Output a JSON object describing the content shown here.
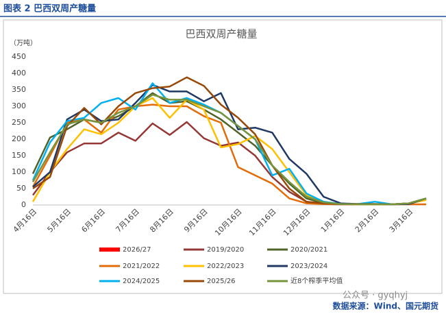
{
  "header": {
    "title": "图表 2  巴西双周产糖量"
  },
  "chart_data": {
    "type": "line",
    "title": "巴西双周产糖量",
    "y_label": "（万吨）",
    "categories": [
      "4月16日",
      null,
      "5月16日",
      null,
      "6月16日",
      null,
      "7月16日",
      null,
      "8月16日",
      null,
      "9月16日",
      null,
      "10月16日",
      null,
      "11月16日",
      null,
      "12月16日",
      null,
      "1月16日",
      null,
      "2月16日",
      null,
      "3月16日",
      null
    ],
    "ylim": [
      0,
      450
    ],
    "yticks": [
      0,
      50,
      100,
      150,
      200,
      250,
      300,
      350,
      400,
      450
    ],
    "grid": false,
    "series": [
      {
        "name": "2026/27",
        "color": "#ff0000",
        "values": [
          null,
          null,
          null,
          null,
          null,
          null,
          null,
          null,
          null,
          null,
          null,
          null,
          null,
          null,
          null,
          null,
          null,
          null,
          null,
          null,
          null,
          null,
          null,
          null
        ]
      },
      {
        "name": "2019/2020",
        "color": "#953735",
        "values": [
          30,
          100,
          160,
          187,
          187,
          220,
          195,
          248,
          213,
          252,
          203,
          180,
          190,
          150,
          85,
          40,
          10,
          3,
          2,
          2,
          2,
          2,
          5,
          18
        ]
      },
      {
        "name": "2020/2021",
        "color": "#4f6228",
        "values": [
          95,
          205,
          230,
          260,
          250,
          270,
          300,
          340,
          310,
          315,
          290,
          260,
          220,
          180,
          120,
          65,
          20,
          5,
          3,
          2,
          2,
          2,
          5,
          20
        ]
      },
      {
        "name": "2021/2022",
        "color": "#e36c09",
        "values": [
          55,
          150,
          250,
          260,
          220,
          290,
          300,
          305,
          300,
          300,
          270,
          250,
          115,
          90,
          65,
          20,
          5,
          3,
          2,
          2,
          2,
          2,
          2,
          2
        ]
      },
      {
        "name": "2022/2023",
        "color": "#ffc000",
        "values": [
          10,
          100,
          170,
          230,
          215,
          250,
          300,
          325,
          265,
          320,
          290,
          175,
          185,
          210,
          170,
          100,
          30,
          10,
          3,
          2,
          2,
          2,
          5,
          15
        ]
      },
      {
        "name": "2023/2024",
        "color": "#1f3864",
        "values": [
          55,
          100,
          260,
          290,
          255,
          260,
          310,
          365,
          345,
          345,
          315,
          340,
          230,
          235,
          220,
          140,
          95,
          25,
          5,
          3,
          3,
          2,
          3,
          20
        ]
      },
      {
        "name": "2024/2025",
        "color": "#00b0f0",
        "values": [
          75,
          190,
          255,
          265,
          310,
          325,
          290,
          370,
          310,
          325,
          305,
          280,
          240,
          200,
          90,
          110,
          35,
          10,
          3,
          3,
          10,
          2,
          5,
          20
        ]
      },
      {
        "name": "2025/26",
        "color": "#984807",
        "values": [
          50,
          85,
          240,
          295,
          245,
          300,
          340,
          355,
          360,
          388,
          362,
          305,
          265,
          215,
          120,
          50,
          10,
          5,
          3,
          3,
          3,
          2,
          5,
          20
        ]
      },
      {
        "name": "近8个榨季平均值",
        "color": "#77933c",
        "values": [
          70,
          160,
          245,
          260,
          250,
          280,
          300,
          335,
          320,
          320,
          300,
          280,
          240,
          200,
          120,
          70,
          25,
          8,
          3,
          2,
          2,
          2,
          5,
          20
        ]
      }
    ]
  },
  "watermark": "公众号 · gyqhyj",
  "source": "数据来源：Wind、国元期货"
}
